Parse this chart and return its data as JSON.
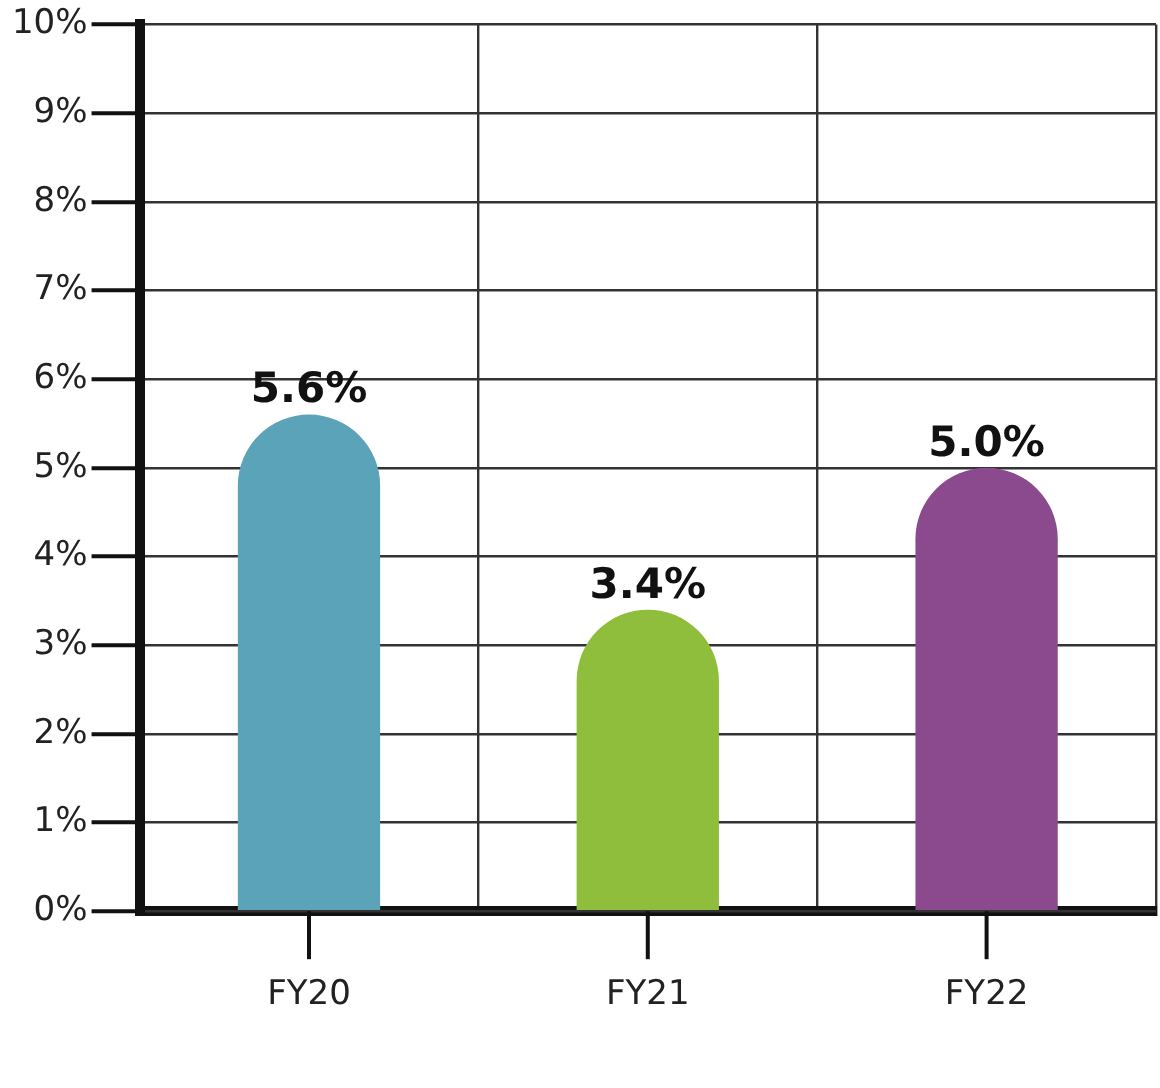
{
  "chart_data": {
    "type": "bar",
    "categories": [
      "FY20",
      "FY21",
      "FY22"
    ],
    "values": [
      5.6,
      3.4,
      5.0
    ],
    "colors": [
      "#5aa3b8",
      "#8fbe3c",
      "#8c4a8e"
    ],
    "value_labels": [
      "5.6%",
      "3.4%",
      "5.0%"
    ],
    "ylim": [
      0,
      10
    ],
    "yticks": [
      {
        "value": 0,
        "label": "0%"
      },
      {
        "value": 1,
        "label": "1%"
      },
      {
        "value": 2,
        "label": "2%"
      },
      {
        "value": 3,
        "label": "3%"
      },
      {
        "value": 4,
        "label": "4%"
      },
      {
        "value": 5,
        "label": "5%"
      },
      {
        "value": 6,
        "label": "6%"
      },
      {
        "value": 7,
        "label": "7%"
      },
      {
        "value": 8,
        "label": "8%"
      },
      {
        "value": 9,
        "label": "9%"
      },
      {
        "value": 10,
        "label": "10%"
      }
    ],
    "grid": true,
    "legend": false
  }
}
